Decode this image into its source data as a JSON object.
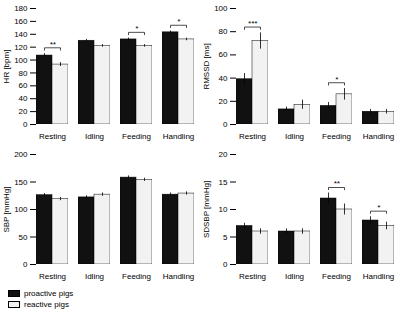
{
  "chart_data": [
    {
      "type": "bar",
      "ylabel": "HR [bpm]",
      "categories": [
        "Resting",
        "Idling",
        "Feeding",
        "Handling"
      ],
      "series": [
        {
          "name": "proactive pigs",
          "color": "#111111",
          "values": [
            107,
            130,
            132,
            143
          ],
          "errors": [
            3,
            2,
            2,
            2
          ]
        },
        {
          "name": "reactive pigs",
          "color": "#f2f2f2",
          "values": [
            93,
            122,
            122,
            132
          ],
          "errors": [
            3,
            2,
            2,
            2
          ]
        }
      ],
      "ylim": [
        0,
        180
      ],
      "yticks": [
        0,
        20,
        40,
        60,
        80,
        100,
        120,
        140,
        160,
        180
      ],
      "annotations": [
        {
          "category": "Resting",
          "text": "**"
        },
        {
          "category": "Feeding",
          "text": "*"
        },
        {
          "category": "Handling",
          "text": "*"
        }
      ],
      "grid": false
    },
    {
      "type": "bar",
      "ylabel": "RMSSD [ms]",
      "categories": [
        "Resting",
        "Idling",
        "Feeding",
        "Handling"
      ],
      "series": [
        {
          "name": "proactive pigs",
          "color": "#111111",
          "values": [
            39,
            13,
            16,
            11
          ],
          "errors": [
            5,
            2,
            3,
            2
          ]
        },
        {
          "name": "reactive pigs",
          "color": "#f2f2f2",
          "values": [
            72,
            17,
            26,
            11
          ],
          "errors": [
            7,
            4,
            5,
            2
          ]
        }
      ],
      "ylim": [
        0,
        100
      ],
      "yticks": [
        0,
        20,
        40,
        60,
        80,
        100
      ],
      "annotations": [
        {
          "category": "Resting",
          "text": "***"
        },
        {
          "category": "Feeding",
          "text": "*"
        }
      ],
      "grid": false
    },
    {
      "type": "bar",
      "ylabel": "SBP [mmHg]",
      "categories": [
        "Resting",
        "Idling",
        "Feeding",
        "Handling"
      ],
      "series": [
        {
          "name": "proactive pigs",
          "color": "#111111",
          "values": [
            126,
            122,
            158,
            127
          ],
          "errors": [
            3,
            3,
            3,
            3
          ]
        },
        {
          "name": "reactive pigs",
          "color": "#f2f2f2",
          "values": [
            119,
            127,
            154,
            129
          ],
          "errors": [
            3,
            3,
            3,
            3
          ]
        }
      ],
      "ylim": [
        0,
        200
      ],
      "yticks": [
        0,
        50,
        100,
        150,
        200
      ],
      "annotations": [],
      "grid": false,
      "legend": "lower left"
    },
    {
      "type": "bar",
      "ylabel": "SDSBP [mmHg]",
      "categories": [
        "Resting",
        "Idling",
        "Feeding",
        "Handling"
      ],
      "series": [
        {
          "name": "proactive pigs",
          "color": "#111111",
          "values": [
            7,
            6,
            12,
            8
          ],
          "errors": [
            0.5,
            0.5,
            1,
            0.7
          ]
        },
        {
          "name": "reactive pigs",
          "color": "#f2f2f2",
          "values": [
            6,
            6,
            10,
            7
          ],
          "errors": [
            0.5,
            0.5,
            1,
            0.7
          ]
        }
      ],
      "ylim": [
        0,
        20
      ],
      "yticks": [
        0,
        5,
        10,
        15,
        20
      ],
      "annotations": [
        {
          "category": "Feeding",
          "text": "**"
        },
        {
          "category": "Handling",
          "text": "*"
        }
      ],
      "grid": false
    }
  ]
}
